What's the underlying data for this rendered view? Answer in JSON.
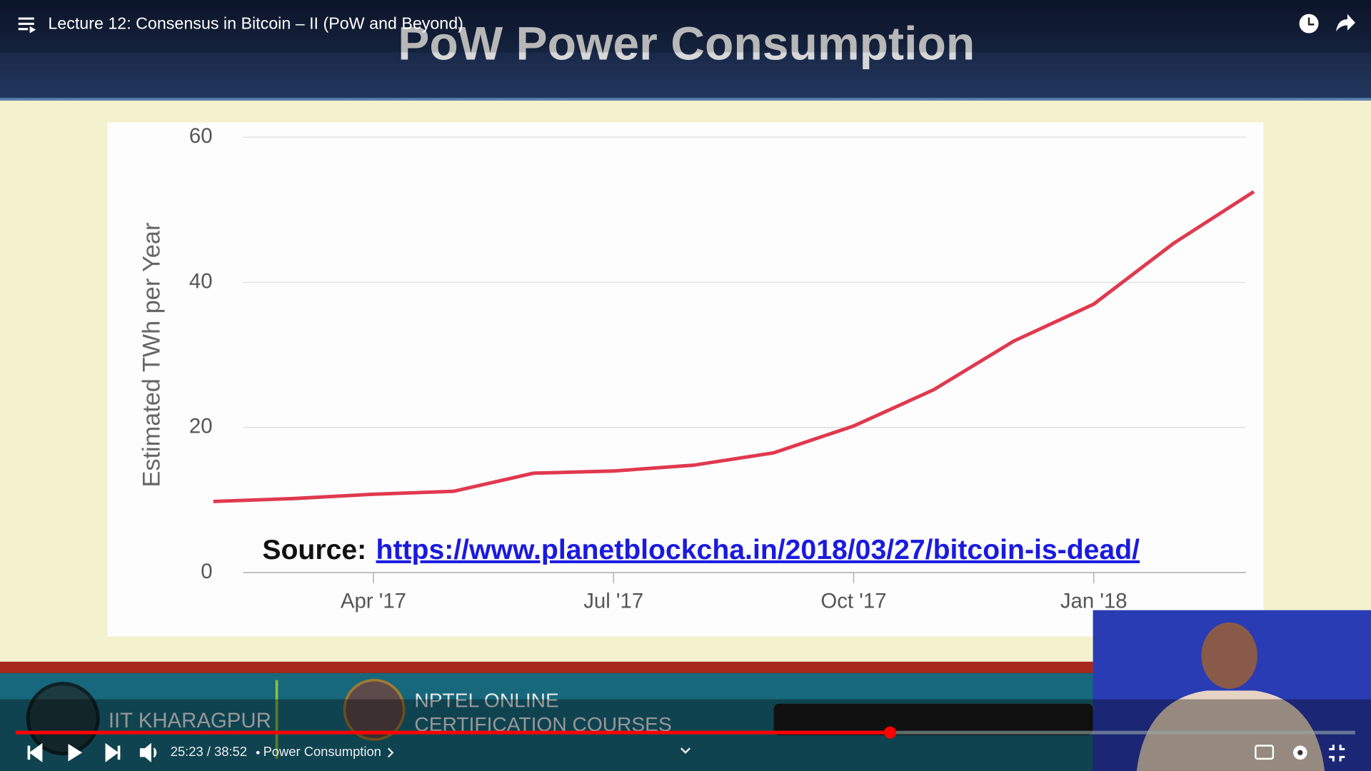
{
  "player": {
    "video_title": "Lecture 12: Consensus in Bitcoin – II (PoW and Beyond)",
    "time": "25:23 / 38:52",
    "chapter": "Power Consumption"
  },
  "slide": {
    "title": "PoW Power Consumption",
    "source_label": "Source:",
    "source_url": "https://www.planetblockcha.in/2018/03/27/bitcoin-is-dead/",
    "institute": "IIT KHARAGPUR",
    "program_line1": "NPTEL ONLINE",
    "program_line2": "CERTIFICATION COURSES"
  },
  "chart_data": {
    "type": "line",
    "y_label": "Estimated TWh per Year",
    "x": [
      "2017-02",
      "2017-03",
      "2017-04",
      "2017-05",
      "2017-06",
      "2017-07",
      "2017-08",
      "2017-09",
      "2017-10",
      "2017-11",
      "2017-12",
      "2018-01",
      "2018-02",
      "2018-03"
    ],
    "series": [
      {
        "name": "Estimated TWh per Year",
        "color": "#e0394f",
        "values": [
          9.8,
          10.2,
          10.8,
          11.2,
          13.7,
          14.0,
          14.8,
          16.5,
          20.2,
          25.2,
          31.9,
          37.0,
          45.4,
          52.5
        ]
      }
    ],
    "xlim": [
      "2017-02",
      "2018-03"
    ],
    "xticks": [
      {
        "value": "2017-04",
        "label": "Apr '17"
      },
      {
        "value": "2017-07",
        "label": "Jul '17"
      },
      {
        "value": "2017-10",
        "label": "Oct '17"
      },
      {
        "value": "2018-01",
        "label": "Jan '18"
      }
    ],
    "ylim": [
      0,
      60
    ],
    "yticks": [
      0,
      20,
      40,
      60
    ],
    "grid": true
  }
}
